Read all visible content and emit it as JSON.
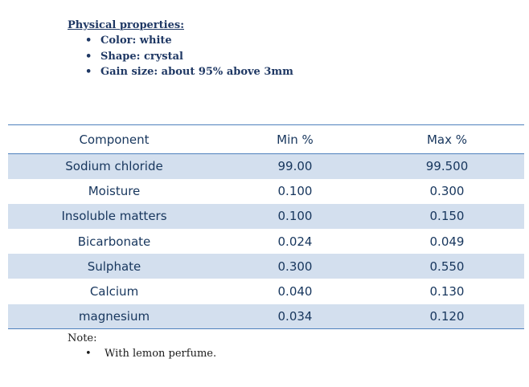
{
  "physical_properties": {
    "title": "Physical properties:",
    "bullet": "•",
    "items": [
      "Color: white",
      "Shape: crystal",
      "Gain size: about 95% above 3mm"
    ]
  },
  "table": {
    "headers": [
      "Component",
      "Min %",
      "Max %"
    ],
    "rows": [
      [
        "Sodium chloride",
        "99.00",
        "99.500"
      ],
      [
        "Moisture",
        "0.100",
        "0.300"
      ],
      [
        "Insoluble matters",
        "0.100",
        "0.150"
      ],
      [
        "Bicarbonate",
        "0.024",
        "0.049"
      ],
      [
        "Sulphate",
        "0.300",
        "0.550"
      ],
      [
        "Calcium",
        "0.040",
        "0.130"
      ],
      [
        "magnesium",
        "0.034",
        "0.120"
      ]
    ]
  },
  "note": {
    "title": "Note:",
    "items": [
      "With lemon perfume."
    ]
  },
  "colors": {
    "heading_text": "#1f3864",
    "table_text": "#17365d",
    "band": "#d3dfee",
    "rule": "#4f81bd"
  }
}
